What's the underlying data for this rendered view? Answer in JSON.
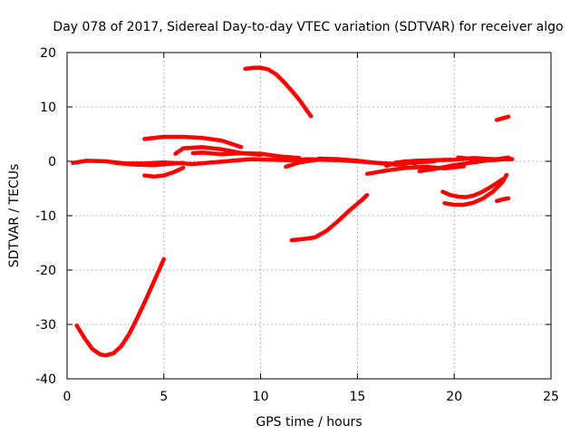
{
  "chart_data": {
    "type": "line",
    "title": "Day 078 of 2017, Sidereal Day-to-day VTEC variation (SDTVAR) for receiver algo",
    "xlabel": "GPS time / hours",
    "ylabel": "SDTVAR / TECUs",
    "xlim": [
      0,
      25
    ],
    "ylim": [
      -40,
      20
    ],
    "xticks": [
      0,
      5,
      10,
      15,
      20,
      25
    ],
    "yticks": [
      -40,
      -30,
      -20,
      -10,
      0,
      10,
      20
    ],
    "xtick_labels": [
      "0",
      "5",
      "10",
      "15",
      "20",
      "25"
    ],
    "ytick_labels": [
      "-40",
      "-30",
      "-20",
      "-10",
      "0",
      "10",
      "20"
    ],
    "grid": true,
    "legend": "none",
    "color": "#ff0000",
    "series": [
      {
        "x": [
          0.5,
          0.9,
          1.3,
          1.7,
          2.0,
          2.4,
          2.8,
          3.2,
          3.6,
          4.0,
          4.4,
          4.8,
          5.0
        ],
        "y": [
          -30.2,
          -32.5,
          -34.5,
          -35.5,
          -35.7,
          -35.3,
          -34.0,
          -31.8,
          -29.0,
          -26.0,
          -22.8,
          -19.6,
          -18.0
        ]
      },
      {
        "x": [
          0.3,
          1.0,
          2.0,
          3.0,
          4.0,
          5.0,
          6.0,
          6.5
        ],
        "y": [
          -0.3,
          0.1,
          0.0,
          -0.4,
          -0.4,
          -0.2,
          -0.4,
          -0.5
        ]
      },
      {
        "x": [
          2.5,
          3.5,
          4.5,
          5.5,
          6.0
        ],
        "y": [
          -0.3,
          -0.6,
          -0.7,
          -0.4,
          -0.3
        ]
      },
      {
        "x": [
          4.0,
          5.0,
          6.0,
          7.0,
          8.0,
          8.5,
          9.0
        ],
        "y": [
          4.1,
          4.5,
          4.5,
          4.3,
          3.8,
          3.2,
          2.6
        ]
      },
      {
        "x": [
          4.0,
          4.5,
          5.0,
          5.5,
          6.0
        ],
        "y": [
          -2.6,
          -2.8,
          -2.6,
          -2.0,
          -1.2
        ]
      },
      {
        "x": [
          5.6,
          6.0,
          7.0,
          8.0,
          9.0,
          10.0
        ],
        "y": [
          1.4,
          2.4,
          2.6,
          2.2,
          1.5,
          1.2
        ]
      },
      {
        "x": [
          6.5,
          7.0,
          8.0,
          9.0,
          10.0,
          11.0,
          12.0
        ],
        "y": [
          1.5,
          1.6,
          1.3,
          1.5,
          1.4,
          0.9,
          0.6
        ]
      },
      {
        "x": [
          6.5,
          7.5,
          8.5,
          9.5,
          10.5,
          11.5,
          12.5,
          13.5
        ],
        "y": [
          -0.5,
          -0.2,
          0.1,
          0.4,
          0.3,
          0.2,
          0.4,
          0.3
        ]
      },
      {
        "x": [
          9.2,
          9.6,
          10.0,
          10.4,
          10.8,
          11.2,
          11.6,
          12.0,
          12.3,
          12.6
        ],
        "y": [
          17.0,
          17.2,
          17.2,
          16.9,
          16.0,
          14.6,
          13.0,
          11.3,
          9.8,
          8.3
        ]
      },
      {
        "x": [
          11.3,
          12.0,
          13.0,
          14.0,
          15.0,
          16.0,
          17.0,
          18.0,
          19.0
        ],
        "y": [
          -1.0,
          -0.2,
          0.3,
          0.2,
          0.0,
          -0.3,
          -0.5,
          -0.2,
          0.0
        ]
      },
      {
        "x": [
          11.6,
          12.2,
          12.8,
          13.4,
          14.0,
          14.6,
          15.2,
          15.5
        ],
        "y": [
          -14.5,
          -14.3,
          -14.0,
          -12.8,
          -11.0,
          -9.0,
          -7.2,
          -6.2
        ]
      },
      {
        "x": [
          13.0,
          14.0,
          15.0,
          16.0,
          17.0,
          17.5
        ],
        "y": [
          0.5,
          0.4,
          0.1,
          -0.3,
          -0.6,
          -0.5
        ]
      },
      {
        "x": [
          15.5,
          16.5,
          17.5,
          18.5,
          19.5,
          20.5
        ],
        "y": [
          -2.3,
          -1.7,
          -1.2,
          -1.0,
          -1.3,
          -0.9
        ]
      },
      {
        "x": [
          16.5,
          17.0,
          17.5,
          18.0
        ],
        "y": [
          -0.8,
          -0.3,
          0.0,
          -0.4
        ]
      },
      {
        "x": [
          17.0,
          18.0,
          19.0,
          20.0,
          21.0,
          22.0,
          23.0
        ],
        "y": [
          -0.2,
          0.1,
          0.2,
          0.3,
          0.6,
          0.4,
          0.4
        ]
      },
      {
        "x": [
          18.2,
          19.0,
          20.0,
          21.0,
          22.0,
          22.8
        ],
        "y": [
          -1.8,
          -1.4,
          -0.7,
          -0.2,
          0.3,
          0.7
        ]
      },
      {
        "x": [
          20.2,
          21.0,
          22.0,
          22.9
        ],
        "y": [
          0.7,
          0.4,
          0.2,
          0.5
        ]
      },
      {
        "x": [
          19.4,
          19.8,
          20.2,
          20.6,
          21.0,
          21.4,
          21.8,
          22.2,
          22.5
        ],
        "y": [
          -5.6,
          -6.2,
          -6.5,
          -6.6,
          -6.3,
          -5.7,
          -4.9,
          -4.0,
          -3.3
        ]
      },
      {
        "x": [
          19.5,
          20.0,
          20.5,
          21.0,
          21.5,
          22.0,
          22.5,
          22.7
        ],
        "y": [
          -7.7,
          -8.0,
          -8.0,
          -7.6,
          -6.8,
          -5.6,
          -3.8,
          -2.5
        ]
      },
      {
        "x": [
          22.2,
          22.5,
          22.8
        ],
        "y": [
          7.6,
          7.9,
          8.2
        ]
      },
      {
        "x": [
          22.2,
          22.5,
          22.8
        ],
        "y": [
          -7.3,
          -7.0,
          -6.8
        ]
      }
    ]
  }
}
